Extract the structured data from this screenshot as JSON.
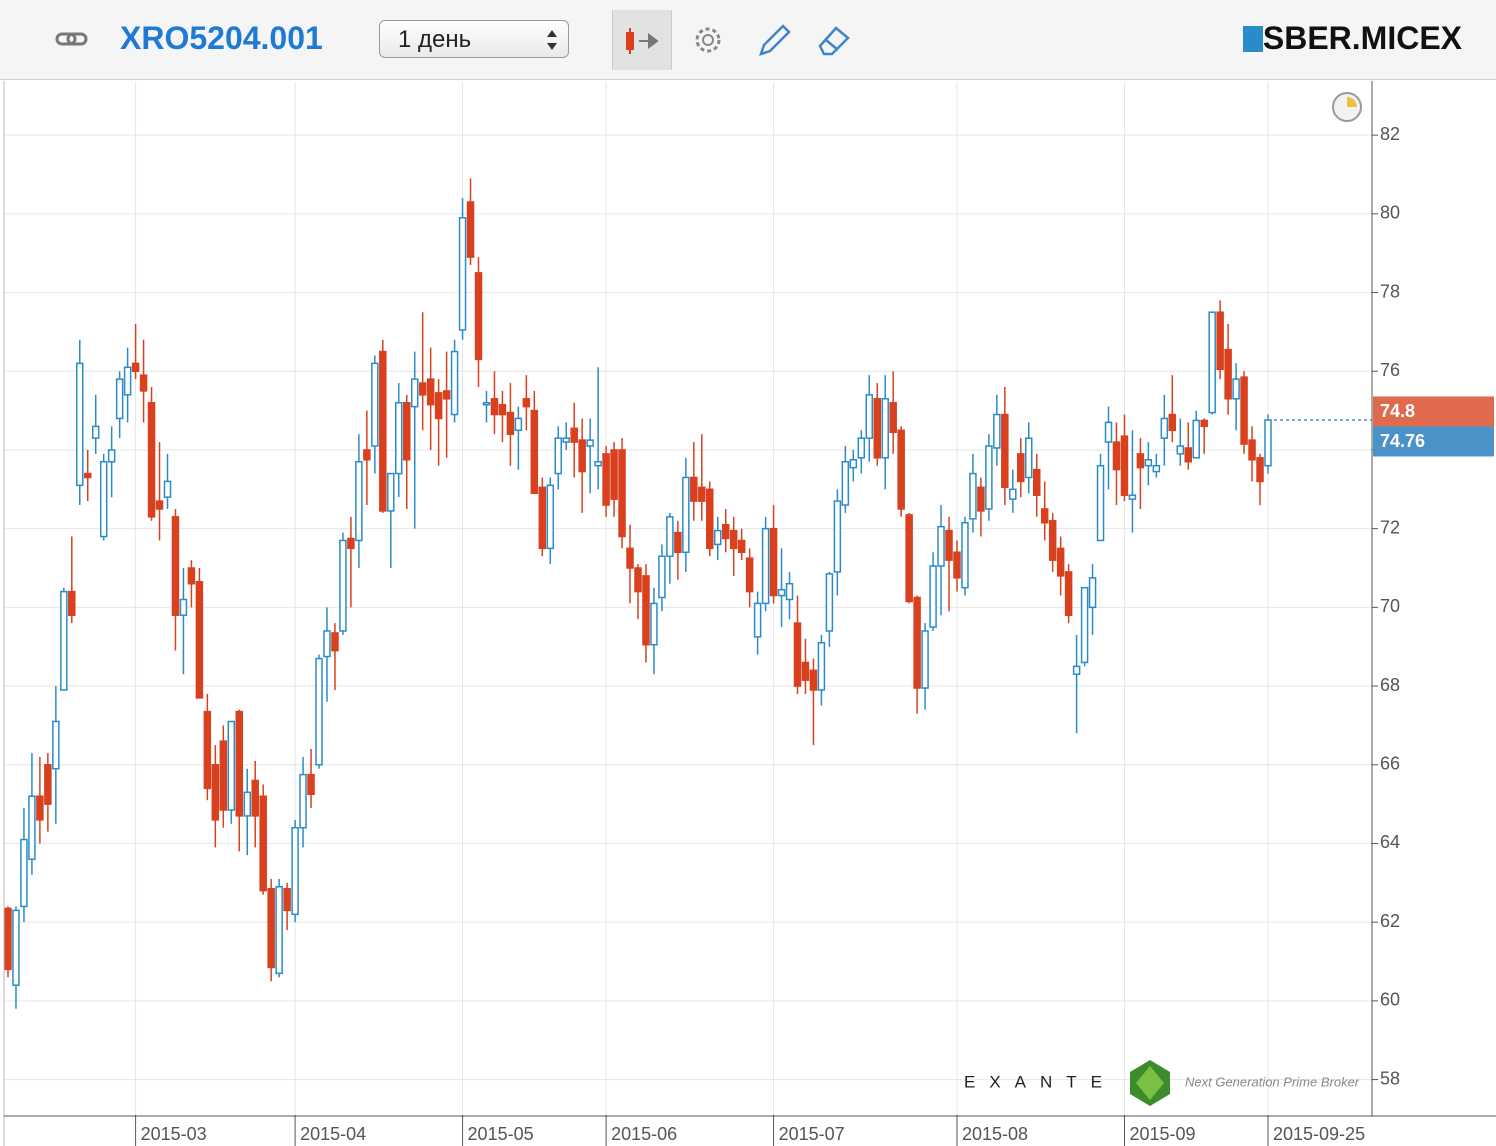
{
  "header": {
    "symbol": "XRO5204.001",
    "interval": "1 день",
    "instrument": "SBER.MICEX"
  },
  "brand": {
    "name": "EXANTE",
    "tagline": "Next Generation Prime Broker"
  },
  "chart_data": {
    "type": "candlestick",
    "categories": [
      null,
      null,
      null,
      null,
      null,
      null,
      null,
      null,
      null,
      null,
      null,
      null,
      null,
      null,
      null,
      null,
      "2015-03",
      null,
      null,
      null,
      null,
      null,
      null,
      null,
      null,
      null,
      null,
      null,
      null,
      null,
      null,
      null,
      null,
      null,
      null,
      null,
      "2015-04",
      null,
      null,
      null,
      null,
      null,
      null,
      null,
      null,
      null,
      null,
      null,
      null,
      null,
      null,
      null,
      null,
      null,
      null,
      null,
      null,
      "2015-05",
      null,
      null,
      null,
      null,
      null,
      null,
      null,
      null,
      null,
      null,
      null,
      null,
      null,
      null,
      null,
      null,
      null,
      "2015-06",
      null,
      null,
      null,
      null,
      null,
      null,
      null,
      null,
      null,
      null,
      null,
      null,
      null,
      null,
      null,
      null,
      null,
      null,
      null,
      null,
      "2015-07",
      null,
      null,
      null,
      null,
      null,
      null,
      null,
      null,
      null,
      null,
      null,
      null,
      null,
      null,
      null,
      null,
      null,
      null,
      null,
      null,
      null,
      null,
      "2015-08",
      null,
      null,
      null,
      null,
      null,
      null,
      null,
      null,
      null,
      null,
      null,
      null,
      null,
      null,
      null,
      null,
      null,
      null,
      null,
      null,
      "2015-09",
      null,
      null,
      null,
      null,
      null,
      null,
      null,
      null,
      null,
      null,
      null,
      null,
      null,
      null,
      null,
      null,
      null,
      "2015-09-25"
    ],
    "open": [
      62.35,
      60.4,
      62.4,
      63.6,
      65.2,
      66.0,
      65.9,
      67.9,
      70.4,
      73.1,
      73.4,
      74.3,
      71.8,
      73.7,
      74.8,
      75.4,
      76.2,
      75.9,
      75.2,
      72.7,
      72.8,
      72.3,
      69.8,
      71.0,
      70.65,
      67.35,
      66.0,
      66.6,
      64.85,
      67.35,
      64.7,
      65.6,
      65.2,
      62.85,
      60.7,
      62.85,
      62.2,
      64.4,
      65.75,
      66.0,
      68.75,
      69.35,
      69.4,
      71.75,
      71.7,
      74.0,
      74.1,
      76.5,
      72.45,
      73.4,
      75.2,
      75.1,
      75.7,
      75.8,
      75.45,
      75.5,
      74.9,
      77.05,
      80.3,
      78.5,
      75.15,
      75.3,
      75.15,
      74.95,
      74.5,
      75.3,
      75.0,
      73.05,
      71.5,
      73.4,
      74.2,
      74.55,
      74.25,
      74.1,
      73.6,
      73.9,
      74.0,
      74.0,
      71.5,
      71.0,
      70.8,
      69.05,
      70.25,
      71.3,
      71.9,
      71.4,
      73.3,
      73.05,
      73.0,
      71.6,
      72.1,
      71.95,
      71.7,
      71.25,
      69.25,
      70.1,
      72.0,
      70.3,
      70.2,
      69.6,
      68.6,
      68.4,
      67.9,
      69.4,
      70.9,
      72.6,
      73.55,
      73.8,
      74.3,
      75.3,
      73.8,
      75.2,
      74.5,
      72.35,
      70.25,
      67.95,
      69.5,
      71.05,
      71.95,
      71.4,
      70.5,
      72.25,
      73.05,
      72.5,
      74.05,
      74.9,
      72.75,
      73.9,
      73.3,
      73.5,
      72.5,
      72.2,
      71.5,
      70.9,
      68.3,
      68.6,
      70.0,
      71.7,
      74.2,
      74.2,
      74.35,
      72.75,
      73.9,
      73.6,
      73.45,
      74.3,
      74.9,
      73.9,
      74.05,
      73.8,
      74.75,
      74.95,
      77.5,
      76.55,
      75.3,
      75.85,
      74.25,
      73.8,
      73.6
    ],
    "high": [
      62.4,
      62.4,
      64.9,
      66.3,
      66.2,
      66.3,
      68.0,
      70.5,
      71.8,
      76.8,
      74.0,
      75.4,
      73.9,
      74.6,
      76.0,
      76.6,
      77.2,
      76.8,
      75.6,
      74.2,
      73.9,
      72.5,
      71.0,
      71.2,
      71.0,
      67.8,
      66.5,
      67.0,
      67.1,
      67.4,
      65.9,
      66.1,
      65.5,
      63.1,
      63.1,
      63.0,
      64.6,
      66.2,
      66.4,
      68.8,
      70.0,
      69.6,
      71.9,
      72.3,
      74.4,
      75.0,
      76.4,
      76.8,
      73.4,
      75.7,
      75.4,
      76.5,
      77.5,
      76.6,
      75.8,
      76.5,
      76.8,
      80.4,
      80.9,
      78.9,
      75.5,
      76.0,
      75.5,
      75.7,
      75.1,
      75.9,
      75.5,
      73.3,
      73.3,
      74.6,
      74.7,
      75.2,
      74.8,
      74.8,
      76.1,
      74.1,
      74.2,
      74.3,
      72.1,
      71.1,
      71.1,
      70.5,
      71.6,
      72.4,
      72.2,
      73.8,
      74.2,
      74.4,
      73.2,
      72.3,
      72.5,
      72.3,
      72.0,
      71.5,
      70.4,
      72.3,
      72.6,
      71.5,
      70.9,
      70.3,
      69.2,
      68.7,
      69.3,
      70.9,
      73.0,
      74.1,
      74.0,
      74.5,
      75.9,
      75.7,
      75.9,
      76.0,
      74.6,
      72.4,
      70.3,
      69.6,
      71.4,
      72.6,
      72.3,
      71.7,
      72.3,
      73.9,
      73.3,
      74.4,
      75.4,
      75.6,
      73.5,
      74.3,
      74.7,
      73.9,
      73.2,
      72.4,
      71.8,
      71.1,
      69.3,
      70.5,
      71.1,
      73.9,
      75.1,
      74.7,
      74.9,
      74.5,
      74.3,
      74.2,
      73.9,
      75.4,
      75.9,
      74.8,
      74.7,
      75.0,
      74.8,
      77.5,
      77.8,
      77.2,
      76.2,
      76.0,
      74.6,
      73.9,
      74.9
    ],
    "low": [
      60.6,
      59.8,
      62.0,
      63.2,
      64.0,
      64.3,
      64.5,
      67.9,
      69.6,
      72.6,
      72.7,
      73.9,
      71.7,
      72.8,
      74.3,
      74.7,
      75.8,
      74.7,
      72.2,
      71.7,
      72.5,
      68.9,
      68.3,
      70.0,
      67.7,
      65.1,
      63.9,
      64.4,
      64.5,
      63.8,
      63.7,
      63.9,
      62.7,
      60.5,
      60.6,
      61.8,
      62.0,
      63.9,
      64.9,
      65.9,
      67.6,
      67.9,
      69.3,
      70.0,
      71.0,
      72.6,
      73.4,
      72.4,
      71.0,
      72.8,
      72.5,
      72.0,
      74.5,
      74.0,
      73.6,
      73.8,
      74.7,
      76.8,
      78.7,
      75.6,
      74.7,
      74.4,
      74.2,
      73.6,
      73.5,
      74.5,
      72.9,
      71.3,
      71.1,
      73.0,
      74.0,
      73.3,
      72.4,
      72.9,
      73.0,
      72.3,
      72.3,
      71.5,
      70.1,
      69.7,
      68.6,
      68.3,
      69.9,
      70.6,
      70.7,
      70.9,
      72.2,
      72.2,
      71.3,
      71.2,
      71.4,
      70.8,
      71.2,
      70.0,
      68.8,
      69.9,
      70.1,
      69.5,
      69.7,
      67.8,
      67.8,
      66.5,
      67.5,
      69.0,
      70.3,
      72.4,
      73.2,
      73.4,
      73.7,
      73.6,
      73.0,
      73.9,
      72.3,
      70.1,
      67.3,
      67.4,
      69.4,
      69.8,
      69.9,
      70.4,
      70.3,
      71.9,
      71.8,
      72.2,
      73.6,
      72.6,
      72.4,
      72.8,
      72.9,
      72.3,
      71.7,
      70.9,
      70.3,
      69.6,
      66.8,
      68.5,
      69.3,
      71.7,
      73.0,
      72.6,
      72.7,
      71.9,
      72.5,
      73.1,
      73.3,
      73.6,
      74.2,
      73.6,
      73.5,
      73.8,
      73.9,
      74.9,
      75.8,
      74.9,
      74.5,
      73.9,
      73.2,
      72.6,
      73.4
    ],
    "close": [
      60.8,
      62.3,
      64.1,
      65.2,
      64.6,
      65.0,
      67.1,
      70.4,
      69.8,
      76.2,
      73.3,
      74.6,
      73.7,
      74.0,
      75.8,
      76.1,
      76.0,
      75.5,
      72.3,
      72.5,
      73.2,
      69.8,
      70.2,
      70.6,
      67.7,
      65.4,
      64.6,
      64.85,
      67.1,
      64.7,
      65.3,
      64.7,
      62.8,
      60.85,
      62.9,
      62.3,
      64.4,
      65.75,
      65.25,
      68.7,
      69.4,
      68.9,
      71.7,
      71.5,
      73.7,
      73.75,
      76.2,
      72.45,
      73.4,
      75.2,
      73.75,
      75.8,
      75.4,
      75.15,
      74.8,
      75.3,
      76.5,
      79.9,
      78.9,
      76.3,
      75.2,
      74.9,
      74.9,
      74.4,
      74.8,
      75.1,
      72.9,
      71.5,
      73.1,
      74.3,
      74.3,
      74.2,
      73.45,
      74.25,
      73.7,
      72.6,
      72.75,
      71.8,
      71.0,
      70.4,
      69.05,
      70.1,
      71.3,
      72.3,
      71.4,
      73.3,
      72.7,
      72.7,
      71.5,
      71.95,
      71.75,
      71.5,
      71.4,
      70.4,
      70.1,
      72.0,
      70.3,
      70.45,
      70.6,
      68.0,
      68.15,
      67.9,
      69.1,
      70.85,
      72.7,
      73.7,
      73.75,
      74.3,
      75.4,
      73.8,
      75.3,
      74.45,
      72.5,
      70.15,
      67.95,
      69.4,
      71.05,
      72.05,
      71.2,
      70.75,
      72.15,
      73.4,
      72.45,
      74.1,
      74.9,
      73.05,
      73.0,
      73.2,
      74.3,
      72.85,
      72.15,
      71.2,
      70.8,
      69.8,
      68.5,
      70.5,
      70.75,
      73.6,
      74.7,
      73.5,
      72.85,
      72.85,
      73.55,
      73.75,
      73.6,
      74.8,
      74.5,
      74.1,
      73.7,
      74.75,
      74.6,
      77.5,
      76.05,
      75.3,
      75.8,
      74.15,
      73.75,
      73.2,
      74.76
    ],
    "up_color": "#2a8bcb",
    "down_color": "#d9401e",
    "ylim": [
      57.1,
      83.35
    ],
    "yticks": [
      58,
      60,
      62,
      64,
      66,
      68,
      70,
      72,
      74,
      76,
      78,
      80,
      82
    ],
    "grid": true,
    "price_labels": [
      {
        "value": 74.8,
        "color": "#e06a4e"
      },
      {
        "value": 74.76,
        "color": "#4a93c9"
      }
    ]
  }
}
